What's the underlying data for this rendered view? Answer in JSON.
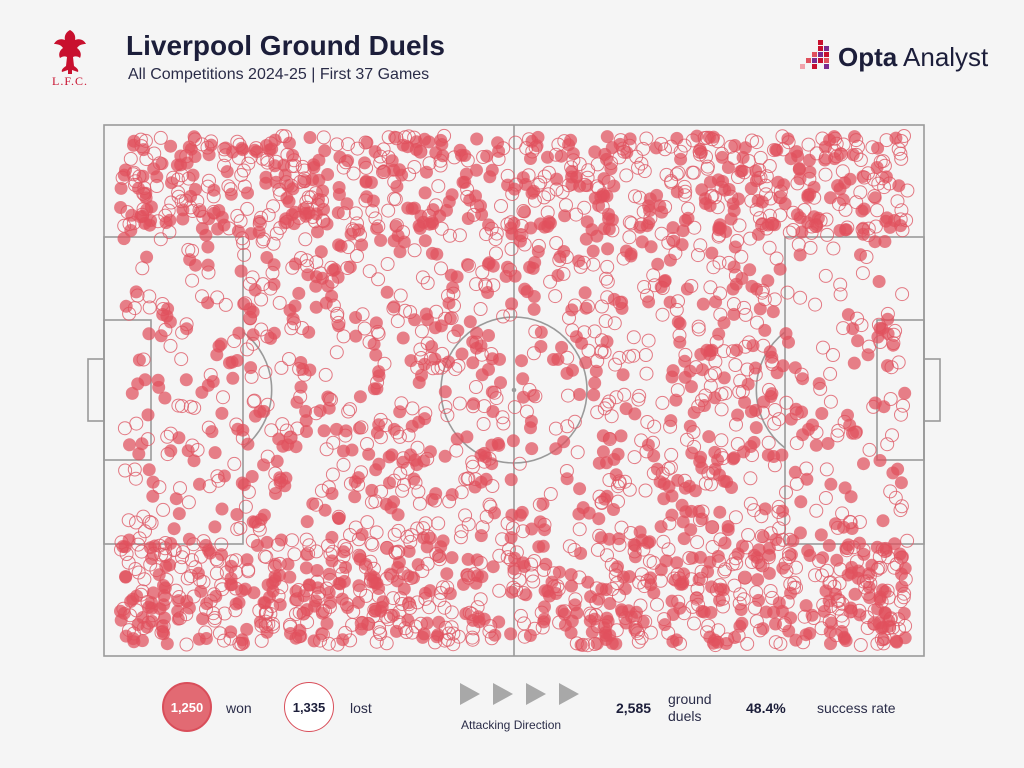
{
  "header": {
    "title": "Liverpool Ground Duels",
    "subtitle": "All Competitions 2024-25 | First 37 Games",
    "club_logo_text": "L.F.C.",
    "brand": {
      "word_bold": "Opta",
      "word_regular": " Analyst"
    }
  },
  "legend": {
    "won_count": "1,250",
    "won_label": "won",
    "lost_count": "1,335",
    "lost_label": "lost",
    "direction_label": "Attacking Direction",
    "total_count": "2,585",
    "total_label_line1": "ground",
    "total_label_line2": "duels",
    "success_rate": "48.4%",
    "success_label": "success rate"
  },
  "colors": {
    "won_fill": "#e0515d",
    "lost_stroke": "#de5a66",
    "pitch_lines": "#9a9a9a",
    "brand_accent": "#c8102e",
    "title_color": "#1c1e3a"
  },
  "icons": [
    "lfc-liverbird-icon",
    "opta-logo-icon",
    "attacking-direction-arrow-icon"
  ],
  "chart_data": {
    "type": "scatter",
    "title": "Liverpool Ground Duels",
    "subtitle": "All Competitions 2024-25 | First 37 Games",
    "xlim": [
      0,
      100
    ],
    "ylim": [
      0,
      100
    ],
    "grid": false,
    "x_direction": "left-to-right (Attacking Direction)",
    "series": [
      {
        "name": "won",
        "total": 1250,
        "style": "filled"
      },
      {
        "name": "lost",
        "total": 1335,
        "style": "hollow"
      }
    ],
    "generation_seed": 20240525
  }
}
